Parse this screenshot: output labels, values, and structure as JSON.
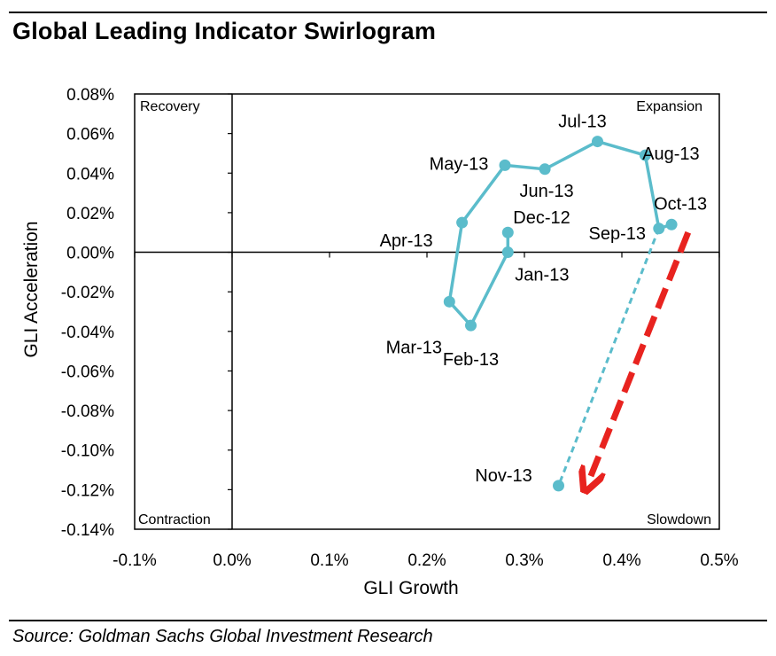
{
  "title": "Global Leading Indicator Swirlogram",
  "source": "Source: Goldman Sachs Global Investment Research",
  "chart_data": {
    "type": "scatter",
    "title": "Global Leading Indicator Swirlogram",
    "xlabel": "GLI Growth",
    "ylabel": "GLI Acceleration",
    "xlim": [
      -0.1,
      0.5
    ],
    "ylim": [
      -0.14,
      0.08
    ],
    "x_ticks": [
      -0.1,
      0.0,
      0.1,
      0.2,
      0.3,
      0.4,
      0.5
    ],
    "y_ticks": [
      0.08,
      0.06,
      0.04,
      0.02,
      0.0,
      -0.02,
      -0.04,
      -0.06,
      -0.08,
      -0.1,
      -0.12,
      -0.14
    ],
    "x_tick_labels": [
      "-0.1%",
      "0.0%",
      "0.1%",
      "0.2%",
      "0.3%",
      "0.4%",
      "0.5%"
    ],
    "y_tick_labels": [
      "0.08%",
      "0.06%",
      "0.04%",
      "0.02%",
      "0.00%",
      "-0.02%",
      "-0.04%",
      "-0.06%",
      "-0.08%",
      "-0.10%",
      "-0.12%",
      "-0.14%"
    ],
    "grid": false,
    "quadrants": {
      "top_left": "Recovery",
      "top_right": "Expansion",
      "bottom_left": "Contraction",
      "bottom_right": "Slowdown"
    },
    "points": [
      {
        "label": "Dec-12",
        "x": 0.283,
        "y": 0.01
      },
      {
        "label": "Jan-13",
        "x": 0.283,
        "y": 0.0
      },
      {
        "label": "Feb-13",
        "x": 0.245,
        "y": -0.037
      },
      {
        "label": "Mar-13",
        "x": 0.223,
        "y": -0.025
      },
      {
        "label": "Apr-13",
        "x": 0.236,
        "y": 0.015
      },
      {
        "label": "May-13",
        "x": 0.28,
        "y": 0.044
      },
      {
        "label": "Jun-13",
        "x": 0.321,
        "y": 0.042
      },
      {
        "label": "Jul-13",
        "x": 0.375,
        "y": 0.056
      },
      {
        "label": "Aug-13",
        "x": 0.424,
        "y": 0.049
      },
      {
        "label": "Sep-13",
        "x": 0.438,
        "y": 0.012
      },
      {
        "label": "Oct-13",
        "x": 0.451,
        "y": 0.014
      },
      {
        "label": "Nov-13",
        "x": 0.335,
        "y": -0.118
      }
    ],
    "series_color": "#5bbccb",
    "arrow_color": "#e8231f",
    "arrow": {
      "from": [
        0.468,
        0.01
      ],
      "to": [
        0.365,
        -0.117
      ]
    }
  }
}
